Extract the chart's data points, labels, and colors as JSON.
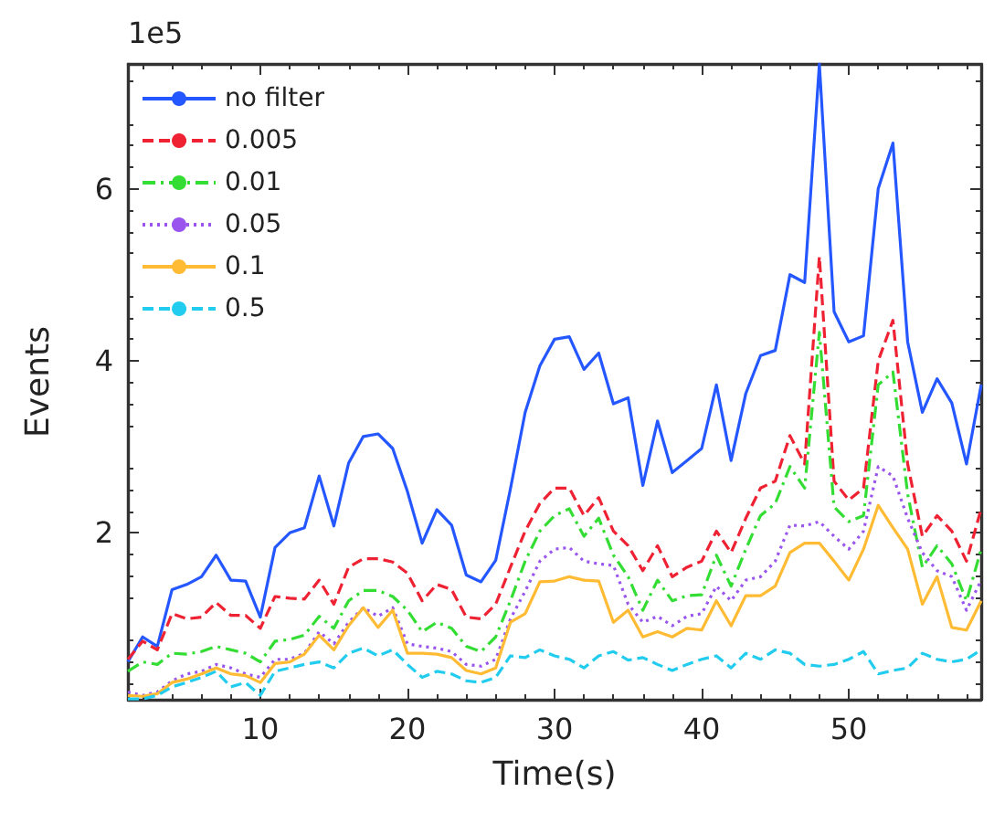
{
  "chart_data": {
    "type": "line",
    "xlabel": "Time(s)",
    "ylabel": "Events",
    "annotations": [
      "1e5"
    ],
    "x": [
      1,
      2,
      3,
      4,
      5,
      6,
      7,
      8,
      9,
      10,
      11,
      12,
      13,
      14,
      15,
      16,
      17,
      18,
      19,
      20,
      21,
      22,
      23,
      24,
      25,
      26,
      27,
      28,
      29,
      30,
      31,
      32,
      33,
      34,
      35,
      36,
      37,
      38,
      39,
      40,
      41,
      42,
      43,
      44,
      45,
      46,
      47,
      48,
      49,
      50,
      51,
      52,
      53,
      54,
      55,
      56,
      57,
      58,
      59
    ],
    "xlim": [
      1,
      59
    ],
    "xticks": [
      10,
      20,
      30,
      40,
      50
    ],
    "ylim": [
      0.06,
      7.45
    ],
    "yticks": [
      2,
      4,
      6
    ],
    "grid": false,
    "legend": "top left",
    "marker": "none",
    "series": [
      {
        "name": "no filter",
        "color": "#2457ff",
        "line_style": "solid",
        "values": [
          0.5,
          0.79,
          0.68,
          1.34,
          1.4,
          1.49,
          1.74,
          1.45,
          1.44,
          1.02,
          1.83,
          2.0,
          2.06,
          2.66,
          2.08,
          2.81,
          3.12,
          3.15,
          2.98,
          2.48,
          1.88,
          2.27,
          2.09,
          1.51,
          1.43,
          1.68,
          2.51,
          3.4,
          3.94,
          4.25,
          4.28,
          3.9,
          4.09,
          3.5,
          3.57,
          2.55,
          3.3,
          2.7,
          2.84,
          2.98,
          3.72,
          2.84,
          3.62,
          4.06,
          4.12,
          5.0,
          4.91,
          7.45,
          4.57,
          4.22,
          4.29,
          6.0,
          6.53,
          4.22,
          3.4,
          3.79,
          3.51,
          2.8,
          3.72
        ]
      },
      {
        "name": "0.005",
        "color": "#ee2233",
        "line_style": "dashed",
        "values": [
          0.53,
          0.74,
          0.64,
          1.06,
          1.0,
          1.02,
          1.19,
          1.04,
          1.04,
          0.89,
          1.26,
          1.24,
          1.23,
          1.45,
          1.17,
          1.6,
          1.7,
          1.7,
          1.66,
          1.53,
          1.21,
          1.4,
          1.34,
          1.02,
          1.0,
          1.17,
          1.6,
          2.02,
          2.34,
          2.52,
          2.52,
          2.2,
          2.41,
          2.02,
          1.85,
          1.56,
          1.85,
          1.49,
          1.6,
          1.67,
          2.02,
          1.77,
          2.17,
          2.52,
          2.6,
          3.13,
          2.8,
          5.21,
          2.6,
          2.38,
          2.52,
          4.0,
          4.47,
          2.8,
          1.96,
          2.2,
          2.02,
          1.67,
          2.28
        ]
      },
      {
        "name": "0.01",
        "color": "#33dd33",
        "line_style": "dashdot",
        "values": [
          0.39,
          0.5,
          0.47,
          0.6,
          0.59,
          0.62,
          0.68,
          0.64,
          0.6,
          0.5,
          0.74,
          0.76,
          0.81,
          1.03,
          0.89,
          1.21,
          1.33,
          1.33,
          1.26,
          1.1,
          0.85,
          0.96,
          0.89,
          0.68,
          0.62,
          0.79,
          1.21,
          1.67,
          2.02,
          2.2,
          2.28,
          1.96,
          2.17,
          1.74,
          1.49,
          1.1,
          1.45,
          1.21,
          1.27,
          1.28,
          1.74,
          1.38,
          1.81,
          2.2,
          2.34,
          2.77,
          2.52,
          4.33,
          2.3,
          2.13,
          2.2,
          3.72,
          3.87,
          2.45,
          1.6,
          1.85,
          1.64,
          1.21,
          1.81
        ]
      },
      {
        "name": "0.05",
        "color": "#9955ee",
        "line_style": "dotted",
        "values": [
          0.15,
          0.11,
          0.15,
          0.28,
          0.36,
          0.39,
          0.47,
          0.43,
          0.36,
          0.32,
          0.53,
          0.53,
          0.6,
          0.85,
          0.71,
          0.96,
          1.13,
          1.03,
          1.13,
          0.71,
          0.68,
          0.66,
          0.62,
          0.47,
          0.45,
          0.53,
          1.0,
          1.32,
          1.67,
          1.81,
          1.83,
          1.67,
          1.64,
          1.62,
          1.17,
          0.96,
          1.03,
          0.92,
          1.03,
          1.06,
          1.38,
          1.21,
          1.45,
          1.49,
          1.67,
          2.09,
          2.08,
          2.13,
          1.96,
          1.81,
          2.02,
          2.77,
          2.66,
          2.17,
          1.77,
          1.56,
          1.49,
          1.1,
          1.45
        ]
      },
      {
        "name": "0.1",
        "color": "#ffbb33",
        "line_style": "solid",
        "values": [
          0.11,
          0.1,
          0.13,
          0.26,
          0.3,
          0.36,
          0.43,
          0.36,
          0.34,
          0.26,
          0.48,
          0.5,
          0.59,
          0.81,
          0.64,
          0.92,
          1.13,
          0.9,
          1.1,
          0.6,
          0.6,
          0.59,
          0.55,
          0.4,
          0.36,
          0.43,
          0.96,
          1.06,
          1.43,
          1.44,
          1.49,
          1.45,
          1.44,
          0.96,
          1.1,
          0.79,
          0.85,
          0.79,
          0.89,
          0.87,
          1.21,
          0.92,
          1.27,
          1.27,
          1.38,
          1.77,
          1.88,
          1.88,
          1.67,
          1.45,
          1.81,
          2.32,
          2.06,
          1.81,
          1.17,
          1.49,
          0.9,
          0.87,
          1.21
        ]
      },
      {
        "name": "0.5",
        "color": "#22ccee",
        "line_style": "dashed",
        "values": [
          0.07,
          0.07,
          0.11,
          0.21,
          0.26,
          0.32,
          0.39,
          0.21,
          0.26,
          0.11,
          0.39,
          0.43,
          0.47,
          0.5,
          0.43,
          0.6,
          0.66,
          0.57,
          0.64,
          0.47,
          0.32,
          0.39,
          0.36,
          0.28,
          0.26,
          0.32,
          0.57,
          0.55,
          0.64,
          0.57,
          0.53,
          0.43,
          0.57,
          0.62,
          0.52,
          0.55,
          0.47,
          0.4,
          0.47,
          0.53,
          0.57,
          0.43,
          0.6,
          0.53,
          0.64,
          0.6,
          0.47,
          0.45,
          0.47,
          0.53,
          0.62,
          0.36,
          0.4,
          0.43,
          0.6,
          0.53,
          0.5,
          0.53,
          0.64
        ]
      }
    ]
  }
}
